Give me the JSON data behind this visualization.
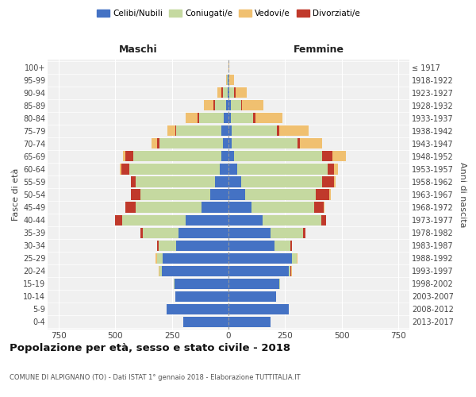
{
  "age_groups": [
    "0-4",
    "5-9",
    "10-14",
    "15-19",
    "20-24",
    "25-29",
    "30-34",
    "35-39",
    "40-44",
    "45-49",
    "50-54",
    "55-59",
    "60-64",
    "65-69",
    "70-74",
    "75-79",
    "80-84",
    "85-89",
    "90-94",
    "95-99",
    "100+"
  ],
  "birth_years": [
    "2013-2017",
    "2008-2012",
    "2003-2007",
    "1998-2002",
    "1993-1997",
    "1988-1992",
    "1983-1987",
    "1978-1982",
    "1973-1977",
    "1968-1972",
    "1963-1967",
    "1958-1962",
    "1953-1957",
    "1948-1952",
    "1943-1947",
    "1938-1942",
    "1933-1937",
    "1928-1932",
    "1923-1927",
    "1918-1922",
    "≤ 1917"
  ],
  "male_celibi": [
    200,
    275,
    235,
    240,
    295,
    290,
    230,
    220,
    190,
    120,
    80,
    60,
    40,
    30,
    25,
    30,
    20,
    10,
    5,
    2,
    0
  ],
  "male_coniugati": [
    0,
    0,
    0,
    2,
    10,
    25,
    80,
    160,
    280,
    290,
    310,
    350,
    400,
    390,
    280,
    200,
    110,
    50,
    20,
    5,
    0
  ],
  "male_vedovi": [
    0,
    0,
    0,
    0,
    5,
    5,
    0,
    1,
    1,
    2,
    2,
    3,
    5,
    10,
    25,
    35,
    50,
    45,
    20,
    5,
    0
  ],
  "male_divorziati": [
    0,
    0,
    0,
    0,
    0,
    2,
    5,
    10,
    30,
    45,
    40,
    20,
    35,
    35,
    10,
    5,
    8,
    5,
    5,
    0,
    0
  ],
  "female_celibi": [
    185,
    265,
    210,
    225,
    265,
    280,
    205,
    185,
    150,
    100,
    75,
    55,
    40,
    25,
    15,
    15,
    10,
    10,
    5,
    0,
    0
  ],
  "female_coniugati": [
    0,
    0,
    0,
    2,
    10,
    20,
    70,
    145,
    260,
    280,
    310,
    360,
    400,
    390,
    290,
    200,
    100,
    45,
    20,
    3,
    0
  ],
  "female_vedovi": [
    0,
    0,
    0,
    0,
    3,
    3,
    2,
    2,
    3,
    5,
    8,
    10,
    20,
    60,
    100,
    130,
    120,
    95,
    50,
    20,
    2
  ],
  "female_divorziati": [
    0,
    0,
    0,
    0,
    2,
    3,
    5,
    10,
    20,
    40,
    60,
    50,
    25,
    45,
    10,
    10,
    10,
    5,
    5,
    0,
    0
  ],
  "color_celibi": "#4472c4",
  "color_coniugati": "#c5d9a0",
  "color_vedovi": "#f0c070",
  "color_divorziati": "#c0392b",
  "title": "Popolazione per età, sesso e stato civile - 2018",
  "subtitle": "COMUNE DI ALPIGNANO (TO) - Dati ISTAT 1° gennaio 2018 - Elaborazione TUTTITALIA.IT",
  "ylabel_left": "Fasce di età",
  "ylabel_right": "Anni di nascita",
  "xlabel_left": "Maschi",
  "xlabel_right": "Femmine",
  "xlim": 800,
  "background_color": "#f0f0f0",
  "grid_color": "#cccccc"
}
